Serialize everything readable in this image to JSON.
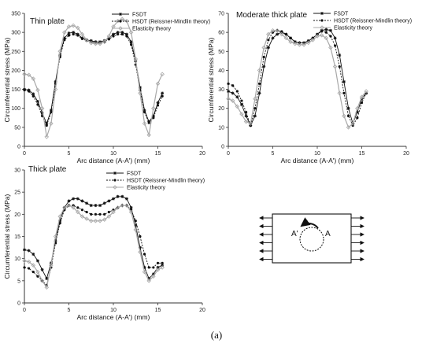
{
  "caption": "(a)",
  "legend": [
    "FSDT",
    "HSDT (Reissner-Mindlin theory)",
    "Elasticity theory"
  ],
  "colors": {
    "fsdt": "#111111",
    "hsdt": "#111111",
    "elasticity": "#a8a8a8",
    "axis": "#333333"
  },
  "inset": {
    "left_label": "A'",
    "right_label": "A"
  },
  "chart_data": [
    {
      "type": "line",
      "title": "Thin plate",
      "xlabel": "Arc distance (A-A') (mm)",
      "ylabel": "Circumferential stress (MPa)",
      "xlim": [
        0,
        20
      ],
      "ylim": [
        0,
        350
      ],
      "xticks": [
        0,
        5,
        10,
        15,
        20
      ],
      "yticks": [
        0,
        50,
        100,
        150,
        200,
        250,
        300,
        350
      ],
      "series": [
        {
          "name": "FSDT",
          "marker": "star",
          "x": [
            0,
            0.5,
            1,
            1.5,
            2,
            2.5,
            3,
            3.5,
            4,
            4.5,
            5,
            5.5,
            6,
            6.5,
            7,
            7.5,
            8,
            8.5,
            9,
            9.5,
            10,
            10.5,
            11,
            11.5,
            12,
            12.5,
            13,
            13.5,
            14,
            14.5,
            15,
            15.5
          ],
          "y": [
            150,
            148,
            138,
            118,
            88,
            60,
            95,
            170,
            240,
            285,
            298,
            300,
            295,
            285,
            280,
            278,
            275,
            275,
            278,
            285,
            295,
            300,
            300,
            295,
            275,
            225,
            155,
            95,
            65,
            80,
            115,
            140
          ]
        },
        {
          "name": "HSDT (Reissner-Mindlin theory)",
          "marker": "dot",
          "x": [
            0,
            0.5,
            1,
            1.5,
            2,
            2.5,
            3,
            3.5,
            4,
            4.5,
            5,
            5.5,
            6,
            6.5,
            7,
            7.5,
            8,
            8.5,
            9,
            9.5,
            10,
            10.5,
            11,
            11.5,
            12,
            12.5,
            13,
            13.5,
            14,
            14.5,
            15,
            15.5
          ],
          "y": [
            148,
            145,
            132,
            110,
            80,
            55,
            90,
            165,
            235,
            280,
            292,
            295,
            292,
            283,
            278,
            275,
            272,
            272,
            275,
            282,
            290,
            295,
            295,
            290,
            268,
            215,
            148,
            90,
            62,
            75,
            108,
            132
          ]
        },
        {
          "name": "Elasticity theory",
          "marker": "diamond",
          "x": [
            0,
            0.5,
            1,
            1.5,
            2,
            2.5,
            3,
            3.5,
            4,
            4.5,
            5,
            5.5,
            6,
            6.5,
            7,
            7.5,
            8,
            8.5,
            9,
            9.5,
            10,
            10.5,
            11,
            11.5,
            12,
            12.5,
            13,
            13.5,
            14,
            14.5,
            15,
            15.5
          ],
          "y": [
            190,
            188,
            178,
            148,
            100,
            25,
            60,
            150,
            250,
            300,
            315,
            318,
            312,
            295,
            280,
            272,
            270,
            270,
            275,
            290,
            315,
            330,
            335,
            330,
            300,
            230,
            140,
            60,
            30,
            100,
            165,
            190
          ]
        }
      ]
    },
    {
      "type": "line",
      "title": "Moderate thick plate",
      "xlabel": "Arc distance (A-A') (mm)",
      "ylabel": "Circumferential stress (MPa)",
      "xlim": [
        0,
        20
      ],
      "ylim": [
        0,
        70
      ],
      "xticks": [
        0,
        5,
        10,
        15,
        20
      ],
      "yticks": [
        0,
        10,
        20,
        30,
        40,
        50,
        60,
        70
      ],
      "series": [
        {
          "name": "FSDT",
          "marker": "star",
          "x": [
            0,
            0.5,
            1,
            1.5,
            2,
            2.5,
            3,
            3.5,
            4,
            4.5,
            5,
            5.5,
            6,
            6.5,
            7,
            7.5,
            8,
            8.5,
            9,
            9.5,
            10,
            10.5,
            11,
            11.5,
            12,
            12.5,
            13,
            13.5,
            14,
            14.5,
            15,
            15.5
          ],
          "y": [
            29,
            28,
            26,
            22,
            16,
            11,
            16,
            28,
            42,
            52,
            57,
            59,
            60,
            59,
            57,
            55,
            54.5,
            54.5,
            55.5,
            57,
            59,
            61,
            61.5,
            61,
            57,
            48,
            34,
            20,
            12,
            18,
            25,
            28
          ]
        },
        {
          "name": "HSDT (Reissner-Mindlin theory)",
          "marker": "dot",
          "x": [
            0,
            0.5,
            1,
            1.5,
            2,
            2.5,
            3,
            3.5,
            4,
            4.5,
            5,
            5.5,
            6,
            6.5,
            7,
            7.5,
            8,
            8.5,
            9,
            9.5,
            10,
            10.5,
            11,
            11.5,
            12,
            12.5,
            13,
            13.5,
            14,
            14.5,
            15,
            15.5
          ],
          "y": [
            33,
            32,
            29,
            24,
            18,
            11,
            20,
            33,
            47,
            56,
            60,
            61,
            60.5,
            59,
            57,
            55,
            54.5,
            54.5,
            55.5,
            57,
            59,
            60.5,
            60,
            58,
            53,
            42,
            28,
            16,
            11,
            15,
            23,
            28
          ]
        },
        {
          "name": "Elasticity theory",
          "marker": "diamond",
          "x": [
            0,
            0.5,
            1,
            1.5,
            2,
            2.5,
            3,
            3.5,
            4,
            4.5,
            5,
            5.5,
            6,
            6.5,
            7,
            7.5,
            8,
            8.5,
            9,
            9.5,
            10,
            10.5,
            11,
            11.5,
            12,
            12.5,
            13,
            13.5,
            14,
            14.5,
            15,
            15.5
          ],
          "y": [
            25,
            24,
            21,
            17,
            13,
            12,
            25,
            40,
            52,
            59,
            61,
            61,
            59,
            57,
            55,
            54,
            53.5,
            53.5,
            54.5,
            56,
            58,
            58.5,
            57,
            52,
            42,
            28,
            16,
            10,
            12,
            20,
            26,
            29
          ]
        }
      ]
    },
    {
      "type": "line",
      "title": "Thick plate",
      "xlabel": "Arc distance (A-A') (mm)",
      "ylabel": "Circumferential stress (MPa)",
      "xlim": [
        0,
        20
      ],
      "ylim": [
        0,
        30
      ],
      "xticks": [
        0,
        5,
        10,
        15,
        20
      ],
      "yticks": [
        0,
        5,
        10,
        15,
        20,
        25,
        30
      ],
      "series": [
        {
          "name": "FSDT",
          "marker": "star",
          "x": [
            0,
            0.5,
            1,
            1.5,
            2,
            2.5,
            3,
            3.5,
            4,
            4.5,
            5,
            5.5,
            6,
            6.5,
            7,
            7.5,
            8,
            8.5,
            9,
            9.5,
            10,
            10.5,
            11,
            11.5,
            12,
            12.5,
            13,
            13.5,
            14,
            14.5,
            15,
            15.5
          ],
          "y": [
            12,
            11.8,
            11,
            9.5,
            7.5,
            5.5,
            9,
            14,
            18.5,
            21.5,
            23,
            23.5,
            23.5,
            23,
            22.5,
            22,
            22,
            22,
            22.5,
            23,
            23.5,
            24,
            24,
            23.5,
            21.5,
            17.5,
            12.5,
            8,
            5.5,
            6.5,
            8,
            8.5
          ]
        },
        {
          "name": "HSDT (Reissner-Mindlin theory)",
          "marker": "dot",
          "x": [
            0,
            0.5,
            1,
            1.5,
            2,
            2.5,
            3,
            3.5,
            4,
            4.5,
            5,
            5.5,
            6,
            6.5,
            7,
            7.5,
            8,
            8.5,
            9,
            9.5,
            10,
            10.5,
            11,
            11.5,
            12,
            12.5,
            13,
            13.5,
            14,
            14.5,
            15,
            15.5
          ],
          "y": [
            8,
            7.8,
            7,
            6,
            5,
            4,
            8,
            13.5,
            18,
            21,
            22,
            22,
            21.5,
            21,
            20.5,
            20,
            20,
            20,
            20,
            20.5,
            21,
            21.5,
            22,
            22,
            21,
            18.5,
            15,
            11,
            8,
            8,
            9,
            9
          ]
        },
        {
          "name": "Elasticity theory",
          "marker": "diamond",
          "x": [
            0,
            0.5,
            1,
            1.5,
            2,
            2.5,
            3,
            3.5,
            4,
            4.5,
            5,
            5.5,
            6,
            6.5,
            7,
            7.5,
            8,
            8.5,
            9,
            9.5,
            10,
            10.5,
            11,
            11.5,
            12,
            12.5,
            13,
            13.5,
            14,
            14.5,
            15,
            15.5
          ],
          "y": [
            9.5,
            9.3,
            8.5,
            7,
            5,
            3.5,
            8.5,
            15,
            19.5,
            21.5,
            22,
            21.5,
            20.5,
            19.5,
            19,
            18.5,
            18.5,
            18.5,
            18.8,
            19.5,
            20.5,
            21.5,
            22,
            22,
            20.5,
            16.5,
            11.5,
            7,
            5,
            6,
            7.5,
            8
          ]
        }
      ]
    }
  ]
}
